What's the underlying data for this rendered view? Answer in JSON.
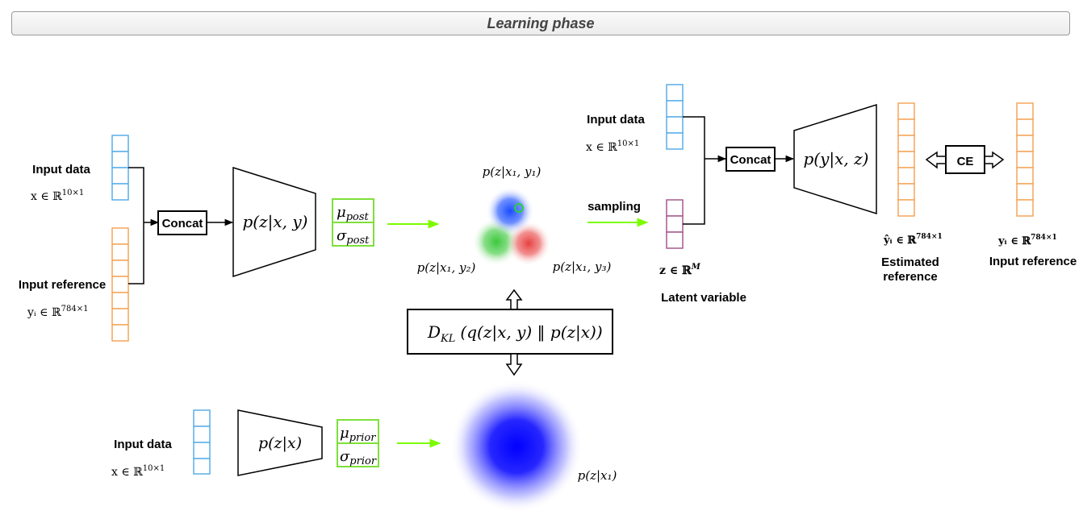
{
  "title": "Learning phase",
  "labels": {
    "input_data_1": "Input data",
    "input_ref_1": "Input reference",
    "concat_1": "Concat",
    "input_data_2": "Input data",
    "sampling": "sampling",
    "concat_2": "Concat",
    "ce": "CE",
    "latent_variable": "Latent variable",
    "estimated_ref_line1": "Estimated",
    "estimated_ref_line2": "reference",
    "input_ref_2": "Input reference",
    "input_data_3": "Input data"
  },
  "math": {
    "x_dim": "x ∈ ℝ",
    "x_exp": "10×1",
    "y_dim": "yᵢ ∈ ℝ",
    "y_exp": "784×1",
    "z_dim": "z ∈ ℝ",
    "z_exp": "M",
    "yhat_dim": "ŷᵢ ∈ ℝ",
    "yi_dim": "yᵢ ∈ ℝ",
    "post_encoder": "p(z|x, y)",
    "mu_post": "μ",
    "mu_post_sub": "post",
    "sigma_post": "σ",
    "sigma_post_sub": "post",
    "decoder": "p(y|x, z)",
    "prior_encoder": "p(z|x)",
    "mu_prior": "μ",
    "mu_prior_sub": "prior",
    "sigma_prior": "σ",
    "sigma_prior_sub": "prior",
    "p_zx1y1": "p(z|x₁, y₁)",
    "p_zx1y2": "p(z|x₁, y₂)",
    "p_zx1y3": "p(z|x₁, y₃)",
    "p_zx1": "p(z|x₁)",
    "kl": "D",
    "kl_sub": "KL",
    "kl_rest": "(q(z|x, y) ‖ p(z|x))"
  },
  "colors": {
    "input_data": "#5aaee8",
    "input_reference": "#f5a55a",
    "latent": "#a55a8c",
    "param_box": "#7ee03a",
    "arrow_green": "#7cfc00",
    "blob_blue": "#0000ff",
    "blob_green": "#3cc83c",
    "blob_red": "#e84040"
  }
}
